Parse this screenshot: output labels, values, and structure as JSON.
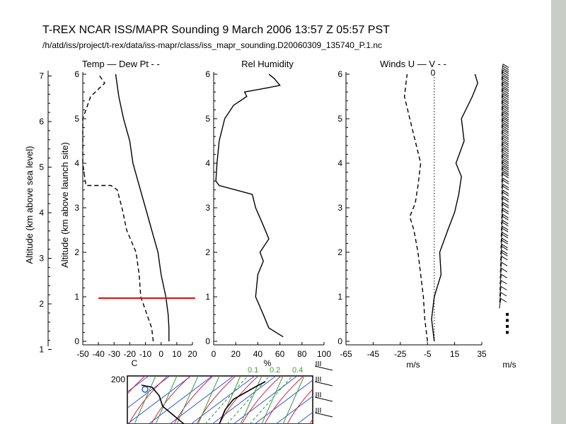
{
  "chart_data": {
    "type": "line",
    "title": "T-REX   NCAR ISS/MAPR Sounding   9 March 2006 13:57 Z 05:57 PST",
    "subtitle": "/h/atd/iss/project/t-rex/data/iss-mapr/class/iss_mapr_sounding.D20060309_135740_P.1.nc",
    "left_axes": {
      "sea_level_label": "Altitude (km above sea level)",
      "sea_level_ticks": [
        "1",
        "2",
        "3",
        "4",
        "5",
        "6",
        "7"
      ],
      "sea_level_range": [
        1,
        7
      ],
      "launch_label": "Altitude (km above launch site)",
      "launch_ticks": [
        "0",
        "1",
        "2",
        "3",
        "4",
        "5",
        "6"
      ],
      "launch_range": [
        0,
        6
      ]
    },
    "panels": [
      {
        "key": "temp",
        "legend_label": "Temp — Dew Pt - -",
        "xlabel": "C",
        "xlim": [
          -50,
          20
        ],
        "xticks": [
          "-50",
          "-40",
          "-30",
          "-20",
          "-10",
          "0",
          "10",
          "20"
        ],
        "series": [
          {
            "name": "Temp",
            "style": "solid",
            "points": [
              [
                5,
                0
              ],
              [
                5,
                0.3
              ],
              [
                4.5,
                0.6
              ],
              [
                3,
                1
              ],
              [
                0,
                1.5
              ],
              [
                -2,
                2
              ],
              [
                -6,
                2.5
              ],
              [
                -10,
                3
              ],
              [
                -14,
                3.5
              ],
              [
                -18,
                4
              ],
              [
                -20,
                4.5
              ],
              [
                -24,
                5
              ],
              [
                -27,
                5.5
              ],
              [
                -29,
                6
              ]
            ]
          },
          {
            "name": "Dew Pt",
            "style": "dashed",
            "points": [
              [
                -5,
                0
              ],
              [
                -6,
                0.3
              ],
              [
                -9,
                0.6
              ],
              [
                -13,
                1
              ],
              [
                -14,
                1.5
              ],
              [
                -16,
                2
              ],
              [
                -22,
                2.5
              ],
              [
                -25,
                3
              ],
              [
                -28,
                3.4
              ],
              [
                -32,
                3.5
              ],
              [
                -48,
                3.5
              ],
              [
                -50,
                4
              ],
              [
                -50,
                5
              ],
              [
                -45,
                5.5
              ],
              [
                -36,
                5.8
              ],
              [
                -40,
                6
              ]
            ]
          }
        ],
        "marker_km": 0.97,
        "marker_x": [
          -40,
          5
        ]
      },
      {
        "key": "rh",
        "legend_label": "Rel Humidity",
        "xlabel": "%",
        "xlim": [
          0,
          100
        ],
        "xticks": [
          "0",
          "20",
          "40",
          "60",
          "80",
          "100"
        ],
        "series": [
          {
            "name": "RH",
            "style": "solid",
            "points": [
              [
                63,
                0.1
              ],
              [
                50,
                0.3
              ],
              [
                45,
                0.6
              ],
              [
                38,
                1
              ],
              [
                40,
                1.5
              ],
              [
                45,
                1.8
              ],
              [
                42,
                2
              ],
              [
                50,
                2.3
              ],
              [
                45,
                2.6
              ],
              [
                38,
                3
              ],
              [
                35,
                3.3
              ],
              [
                5,
                3.5
              ],
              [
                2,
                3.6
              ],
              [
                3,
                4
              ],
              [
                5,
                4.5
              ],
              [
                10,
                5
              ],
              [
                18,
                5.3
              ],
              [
                30,
                5.5
              ],
              [
                28,
                5.6
              ],
              [
                50,
                5.7
              ],
              [
                60,
                5.75
              ],
              [
                55,
                5.9
              ],
              [
                50,
                6
              ]
            ]
          }
        ]
      },
      {
        "key": "winds",
        "legend_label": "Winds U — V - -",
        "xlabel": "m/s",
        "zero_label": "0",
        "xlim": [
          -65,
          35
        ],
        "xticks": [
          "-65",
          "-45",
          "-25",
          "-5",
          "15",
          "35"
        ],
        "series": [
          {
            "name": "U",
            "style": "solid",
            "points": [
              [
                0,
                0
              ],
              [
                -2,
                0.5
              ],
              [
                0,
                1
              ],
              [
                5,
                1.5
              ],
              [
                4,
                2
              ],
              [
                10,
                2.5
              ],
              [
                15,
                2.9
              ],
              [
                18,
                3.3
              ],
              [
                20,
                3.7
              ],
              [
                16,
                4
              ],
              [
                22,
                4.5
              ],
              [
                20,
                5
              ],
              [
                28,
                5.5
              ],
              [
                32,
                5.8
              ],
              [
                30,
                6
              ]
            ]
          },
          {
            "name": "V",
            "style": "dashed",
            "points": [
              [
                -5,
                0
              ],
              [
                -7,
                0.5
              ],
              [
                -8,
                1
              ],
              [
                -10,
                1.5
              ],
              [
                -12,
                2
              ],
              [
                -15,
                2.5
              ],
              [
                -18,
                2.8
              ],
              [
                -14,
                3.1
              ],
              [
                -12,
                3.5
              ],
              [
                -10,
                4
              ],
              [
                -14,
                4.5
              ],
              [
                -18,
                5
              ],
              [
                -22,
                5.5
              ],
              [
                -20,
                6
              ]
            ]
          }
        ],
        "zero_line": 0
      }
    ],
    "barbs_unit": "m/s",
    "skewt_labels": [
      "200",
      "0.1",
      "0.2",
      "0.4"
    ]
  }
}
